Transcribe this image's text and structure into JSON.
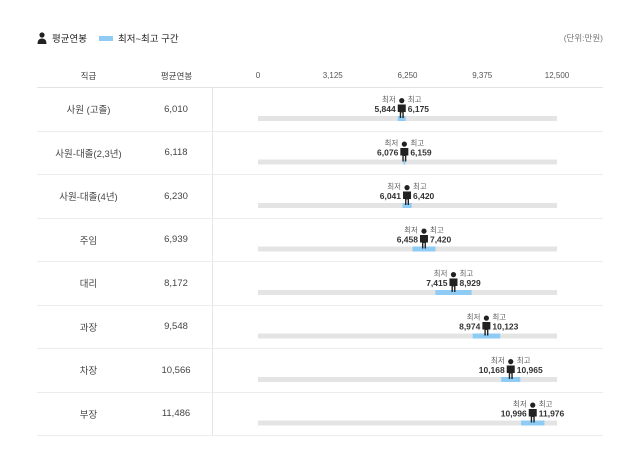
{
  "legend": {
    "avg_label": "평균연봉",
    "range_label": "최저~최고 구간",
    "person_icon": "person-icon"
  },
  "unit_label": "(단위:만원)",
  "table": {
    "col_rank": "직급",
    "col_avg": "평균연봉"
  },
  "colors": {
    "range_bar": "#8ecbf5",
    "track": "#e4e4e4",
    "person": "#222222"
  },
  "chart_data": {
    "type": "bar",
    "xlim": [
      0,
      12500
    ],
    "xticks": [
      "0",
      "3,125",
      "6,250",
      "9,375",
      "12,500"
    ],
    "min_label": "최저",
    "max_label": "최고",
    "rows": [
      {
        "rank": "사원 (고졸)",
        "avg": 6010,
        "avg_text": "6,010",
        "min": 5844,
        "min_text": "5,844",
        "max": 6175,
        "max_text": "6,175"
      },
      {
        "rank": "사원-대졸(2,3년)",
        "avg": 6118,
        "avg_text": "6,118",
        "min": 6076,
        "min_text": "6,076",
        "max": 6159,
        "max_text": "6,159"
      },
      {
        "rank": "사원-대졸(4년)",
        "avg": 6230,
        "avg_text": "6,230",
        "min": 6041,
        "min_text": "6,041",
        "max": 6420,
        "max_text": "6,420"
      },
      {
        "rank": "주임",
        "avg": 6939,
        "avg_text": "6,939",
        "min": 6458,
        "min_text": "6,458",
        "max": 7420,
        "max_text": "7,420"
      },
      {
        "rank": "대리",
        "avg": 8172,
        "avg_text": "8,172",
        "min": 7415,
        "min_text": "7,415",
        "max": 8929,
        "max_text": "8,929"
      },
      {
        "rank": "과장",
        "avg": 9548,
        "avg_text": "9,548",
        "min": 8974,
        "min_text": "8,974",
        "max": 10123,
        "max_text": "10,123"
      },
      {
        "rank": "차장",
        "avg": 10566,
        "avg_text": "10,566",
        "min": 10168,
        "min_text": "10,168",
        "max": 10965,
        "max_text": "10,965"
      },
      {
        "rank": "부장",
        "avg": 11486,
        "avg_text": "11,486",
        "min": 10996,
        "min_text": "10,996",
        "max": 11976,
        "max_text": "11,976"
      }
    ]
  }
}
